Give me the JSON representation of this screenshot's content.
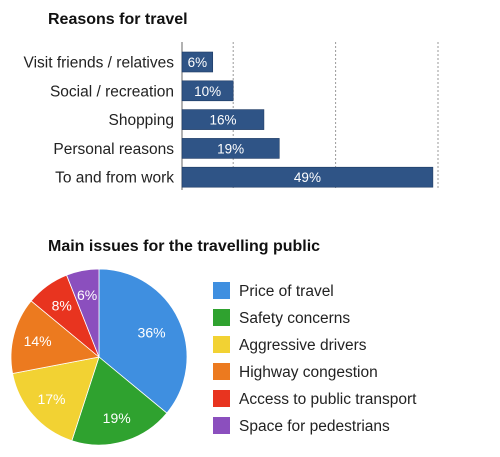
{
  "chart_data": [
    {
      "type": "bar",
      "orientation": "horizontal",
      "title": "Reasons for travel",
      "categories": [
        "Visit friends / relatives",
        "Social / recreation",
        "Shopping",
        "Personal reasons",
        "To and from work"
      ],
      "values": [
        6,
        10,
        16,
        19,
        49
      ],
      "value_labels": [
        "6%",
        "10%",
        "16%",
        "19%",
        "49%"
      ],
      "xlim": [
        0,
        50
      ],
      "grid": true,
      "colors": {
        "bar": "#2f5486",
        "bar_edge": "#1e3a63"
      }
    },
    {
      "type": "pie",
      "title": "Main issues for the travelling public",
      "labels": [
        "Price of travel",
        "Safety concerns",
        "Aggressive drivers",
        "Highway congestion",
        "Access to public transport",
        "Space for pedestrians"
      ],
      "values": [
        36,
        19,
        17,
        14,
        8,
        6
      ],
      "value_labels": [
        "36%",
        "19%",
        "17%",
        "14%",
        "8%",
        "6%"
      ],
      "colors": [
        "#3f8fe0",
        "#2fa22f",
        "#f2d233",
        "#ec7a1f",
        "#e8341f",
        "#8b4fbe"
      ],
      "legend_position": "right"
    }
  ]
}
